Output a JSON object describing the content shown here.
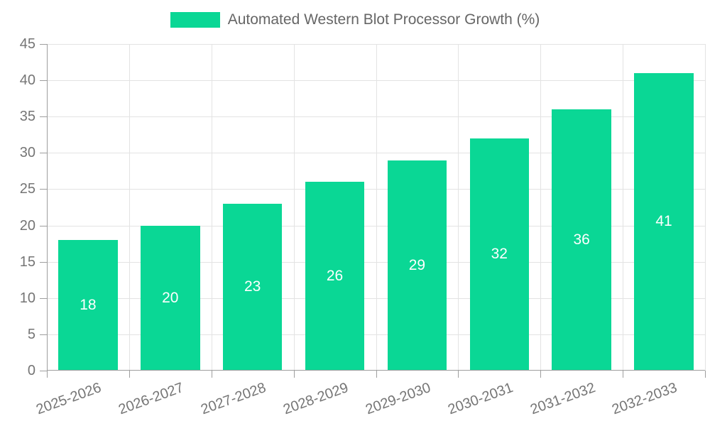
{
  "legend": {
    "label": "Automated Western Blot Processor Growth (%)"
  },
  "chart_data": {
    "type": "bar",
    "title": "Automated Western Blot Processor Growth (%)",
    "categories": [
      "2025-2026",
      "2026-2027",
      "2027-2028",
      "2028-2029",
      "2029-2030",
      "2030-2031",
      "2031-2032",
      "2032-2033"
    ],
    "values": [
      18,
      20,
      23,
      26,
      29,
      32,
      36,
      41
    ],
    "xlabel": "",
    "ylabel": "",
    "ylim": [
      0,
      45
    ],
    "ytick_step": 5,
    "yticks": [
      0,
      5,
      10,
      15,
      20,
      25,
      30,
      35,
      40,
      45
    ],
    "grid": true,
    "legend_position": "top-center",
    "x_label_rotation_deg": -20,
    "value_labels_shown": true
  },
  "colors": {
    "bar": "#0ad795",
    "grid_line": "#e3e3e3",
    "axis_line": "#9e9e9e",
    "tick_text": "#757575",
    "value_label_text": "#ffffff",
    "legend_text": "#666666",
    "background": "#ffffff"
  }
}
